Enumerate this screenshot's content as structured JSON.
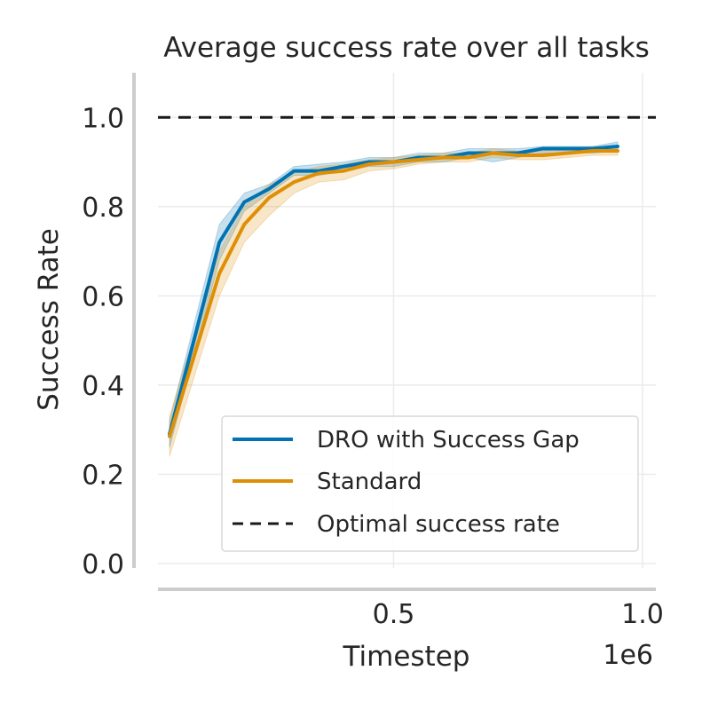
{
  "chart_data": {
    "type": "line",
    "title": "Average success rate over all tasks",
    "xlabel": "Timestep",
    "ylabel": "Success Rate",
    "x_offset_label": "1e6",
    "x_scale": 1000000,
    "xlim": [
      0,
      1000000
    ],
    "ylim": [
      -0.01,
      1.1
    ],
    "x_ticks": [
      500000,
      1000000
    ],
    "x_tick_labels": [
      "0.5",
      "1.0"
    ],
    "y_ticks": [
      0.0,
      0.2,
      0.4,
      0.6,
      0.8,
      1.0
    ],
    "y_tick_labels": [
      "0.0",
      "0.2",
      "0.4",
      "0.6",
      "0.8",
      "1.0"
    ],
    "grid": true,
    "legend_position": "lower-right",
    "reference_line": {
      "name": "Optimal success rate",
      "y": 1.0,
      "color": "#1a1a1a",
      "style": "dashed"
    },
    "x": [
      50000,
      150000,
      200000,
      250000,
      300000,
      350000,
      400000,
      450000,
      500000,
      550000,
      600000,
      650000,
      700000,
      750000,
      800000,
      850000,
      900000,
      950000
    ],
    "series": [
      {
        "name": "DRO with Success Gap",
        "color": "#0173b2",
        "values": [
          0.29,
          0.72,
          0.81,
          0.84,
          0.88,
          0.88,
          0.89,
          0.9,
          0.9,
          0.91,
          0.91,
          0.92,
          0.92,
          0.92,
          0.93,
          0.93,
          0.93,
          0.935
        ],
        "lower": [
          0.26,
          0.68,
          0.79,
          0.83,
          0.87,
          0.87,
          0.88,
          0.89,
          0.89,
          0.9,
          0.9,
          0.91,
          0.9,
          0.91,
          0.92,
          0.92,
          0.92,
          0.925
        ],
        "upper": [
          0.32,
          0.76,
          0.83,
          0.85,
          0.89,
          0.895,
          0.9,
          0.91,
          0.91,
          0.92,
          0.92,
          0.93,
          0.93,
          0.93,
          0.935,
          0.935,
          0.935,
          0.945
        ]
      },
      {
        "name": "Standard",
        "color": "#de8f05",
        "values": [
          0.285,
          0.65,
          0.76,
          0.82,
          0.855,
          0.875,
          0.88,
          0.895,
          0.9,
          0.905,
          0.91,
          0.91,
          0.92,
          0.915,
          0.915,
          0.92,
          0.925,
          0.925
        ],
        "lower": [
          0.24,
          0.6,
          0.72,
          0.78,
          0.83,
          0.855,
          0.86,
          0.88,
          0.885,
          0.895,
          0.9,
          0.9,
          0.91,
          0.905,
          0.905,
          0.91,
          0.915,
          0.915
        ],
        "upper": [
          0.33,
          0.7,
          0.8,
          0.85,
          0.875,
          0.89,
          0.895,
          0.905,
          0.91,
          0.915,
          0.92,
          0.92,
          0.93,
          0.925,
          0.925,
          0.93,
          0.935,
          0.935
        ]
      }
    ]
  }
}
